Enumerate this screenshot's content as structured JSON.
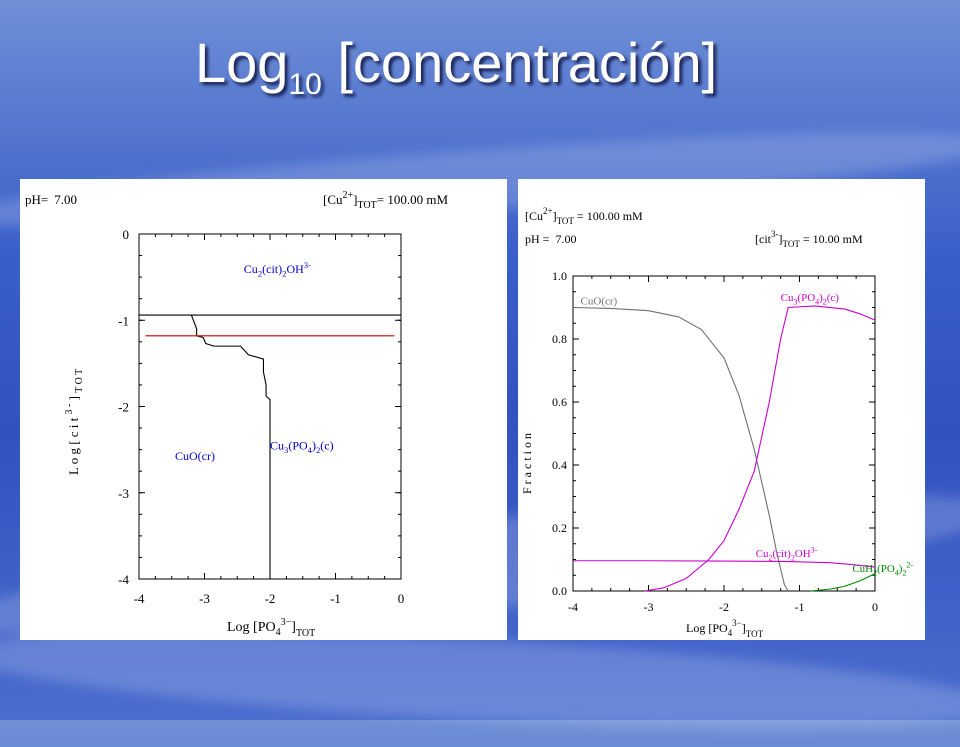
{
  "slide": {
    "title_main": "Log",
    "title_sub": "10",
    "title_rest": " [concentración]"
  },
  "chart_data": [
    {
      "type": "line",
      "subtype": "predominance-diagram",
      "header": {
        "ph_label": "pH=",
        "ph_value": "7.00",
        "cu_prefix": "[Cu",
        "cu_sup": "2+",
        "cu_bracket": "]",
        "cu_sub": "TOT",
        "cu_value": "=  100.00 mM"
      },
      "xlabel": {
        "main": "Log [PO",
        "sub1": "4",
        "sup": "3−",
        "bracket": "]",
        "sub2": "TOT"
      },
      "ylabel": {
        "main": "L o g  [ c i t ",
        "sup": "3 -",
        "bracket": " ] ",
        "sub": "T O T"
      },
      "xlim": [
        -4,
        0
      ],
      "ylim": [
        -4,
        0
      ],
      "xticks": [
        -4,
        -3,
        -2,
        -1,
        0
      ],
      "yticks": [
        0,
        -1,
        -2,
        -3,
        -4
      ],
      "xtick_labels": [
        "-4",
        "-3",
        "-2",
        "-1",
        "0"
      ],
      "ytick_labels": [
        "0",
        "-1",
        "-2",
        "-3",
        "-4"
      ],
      "regions": [
        {
          "formula": [
            "Cu",
            "2",
            "(cit)",
            "2",
            "OH",
            "3-"
          ],
          "x": -2.4,
          "y": -0.45,
          "color": "#0000cc"
        },
        {
          "formula": [
            "CuO(cr)"
          ],
          "x": -3.45,
          "y": -2.62,
          "color": "#0000cc"
        },
        {
          "formula": [
            "Cu",
            "3",
            "(PO",
            "4",
            ")",
            "2",
            "(c)"
          ],
          "x": -2.0,
          "y": -2.5,
          "color": "#0000cc"
        }
      ],
      "boundaries": [
        {
          "name": "upper-boundary",
          "color": "#000000",
          "points": [
            [
              -4,
              -0.94
            ],
            [
              0,
              -0.94
            ]
          ]
        },
        {
          "name": "cuo-cu3po4-boundary",
          "color": "#000000",
          "points": [
            [
              -3.2,
              -0.94
            ],
            [
              -3.12,
              -1.1
            ],
            [
              -3.12,
              -1.18
            ],
            [
              -3.02,
              -1.2
            ],
            [
              -2.98,
              -1.27
            ],
            [
              -2.86,
              -1.3
            ],
            [
              -2.45,
              -1.3
            ],
            [
              -2.33,
              -1.4
            ],
            [
              -2.1,
              -1.45
            ],
            [
              -2.1,
              -1.6
            ],
            [
              -2.06,
              -1.75
            ],
            [
              -2.06,
              -1.88
            ],
            [
              -2.0,
              -1.92
            ],
            [
              -2.0,
              -4
            ]
          ]
        },
        {
          "name": "cit-level-line",
          "color": "#cc0000",
          "points": [
            [
              -3.9,
              -1.18
            ],
            [
              -0.1,
              -1.18
            ]
          ]
        }
      ]
    },
    {
      "type": "line",
      "subtype": "fraction-diagram",
      "header": {
        "cu_prefix": "[Cu",
        "cu_sup": "2+",
        "cu_bracket": "]",
        "cu_sub": "TOT",
        "cu_value": " =  100.00 mM",
        "ph_label": "pH =",
        "ph_value": "7.00",
        "cit_prefix": "[cit",
        "cit_sup": "3-",
        "cit_bracket": "]",
        "cit_sub": "TOT",
        "cit_value": " =  10.00 mM"
      },
      "xlabel": {
        "main": "Log [PO",
        "sub1": "4",
        "sup": "3−",
        "bracket": "]",
        "sub2": "TOT"
      },
      "ylabel": "F r a c t i o n",
      "xlim": [
        -4,
        0
      ],
      "ylim": [
        0,
        1
      ],
      "xticks": [
        -4,
        -3,
        -2,
        -1,
        0
      ],
      "yticks": [
        0,
        0.2,
        0.4,
        0.6,
        0.8,
        1.0
      ],
      "xtick_labels": [
        "-4",
        "-3",
        "-2",
        "-1",
        "0"
      ],
      "ytick_labels": [
        "0.0",
        "0.2",
        "0.4",
        "0.6",
        "0.8",
        "1.0"
      ],
      "series": [
        {
          "name": "CuO(cr)",
          "label": [
            "CuO(cr)"
          ],
          "color": "#707070",
          "label_x": -3.9,
          "label_y": 0.91,
          "x": [
            -4,
            -3.5,
            -3.0,
            -2.6,
            -2.3,
            -2.0,
            -1.8,
            -1.6,
            -1.4,
            -1.3,
            -1.2,
            -1.15
          ],
          "y": [
            0.9,
            0.897,
            0.89,
            0.87,
            0.83,
            0.74,
            0.62,
            0.45,
            0.24,
            0.12,
            0.02,
            0.0
          ]
        },
        {
          "name": "Cu3(PO4)2(c)",
          "label": [
            "Cu",
            "3",
            "(PO",
            "4",
            ")",
            "2",
            "(c)"
          ],
          "color": "#cc00cc",
          "label_x": -1.25,
          "label_y": 0.92,
          "x": [
            -3.05,
            -2.8,
            -2.5,
            -2.2,
            -2.0,
            -1.8,
            -1.6,
            -1.4,
            -1.25,
            -1.15,
            -0.8,
            -0.4,
            -0.2,
            0
          ],
          "y": [
            0.0,
            0.01,
            0.04,
            0.1,
            0.16,
            0.26,
            0.38,
            0.6,
            0.8,
            0.9,
            0.905,
            0.895,
            0.88,
            0.86
          ]
        },
        {
          "name": "Cu2(cit)2OH3-",
          "label": [
            "Cu",
            "2",
            "(cit)",
            "2",
            "OH",
            "3-"
          ],
          "color": "#cc00cc",
          "label_x": -1.58,
          "label_y": 0.108,
          "x": [
            -4,
            -3.0,
            -2.0,
            -1.2,
            -0.6,
            -0.3,
            0
          ],
          "y": [
            0.096,
            0.096,
            0.095,
            0.094,
            0.09,
            0.084,
            0.076
          ]
        },
        {
          "name": "CuH2(PO4)2 2-",
          "label": [
            "CuH",
            "2",
            "(PO",
            "4",
            ")",
            "2",
            "2-"
          ],
          "color": "#008800",
          "label_x": -0.3,
          "label_y": 0.06,
          "x": [
            -0.85,
            -0.6,
            -0.4,
            -0.2,
            0
          ],
          "y": [
            0.0,
            0.006,
            0.015,
            0.032,
            0.055
          ]
        }
      ]
    }
  ]
}
